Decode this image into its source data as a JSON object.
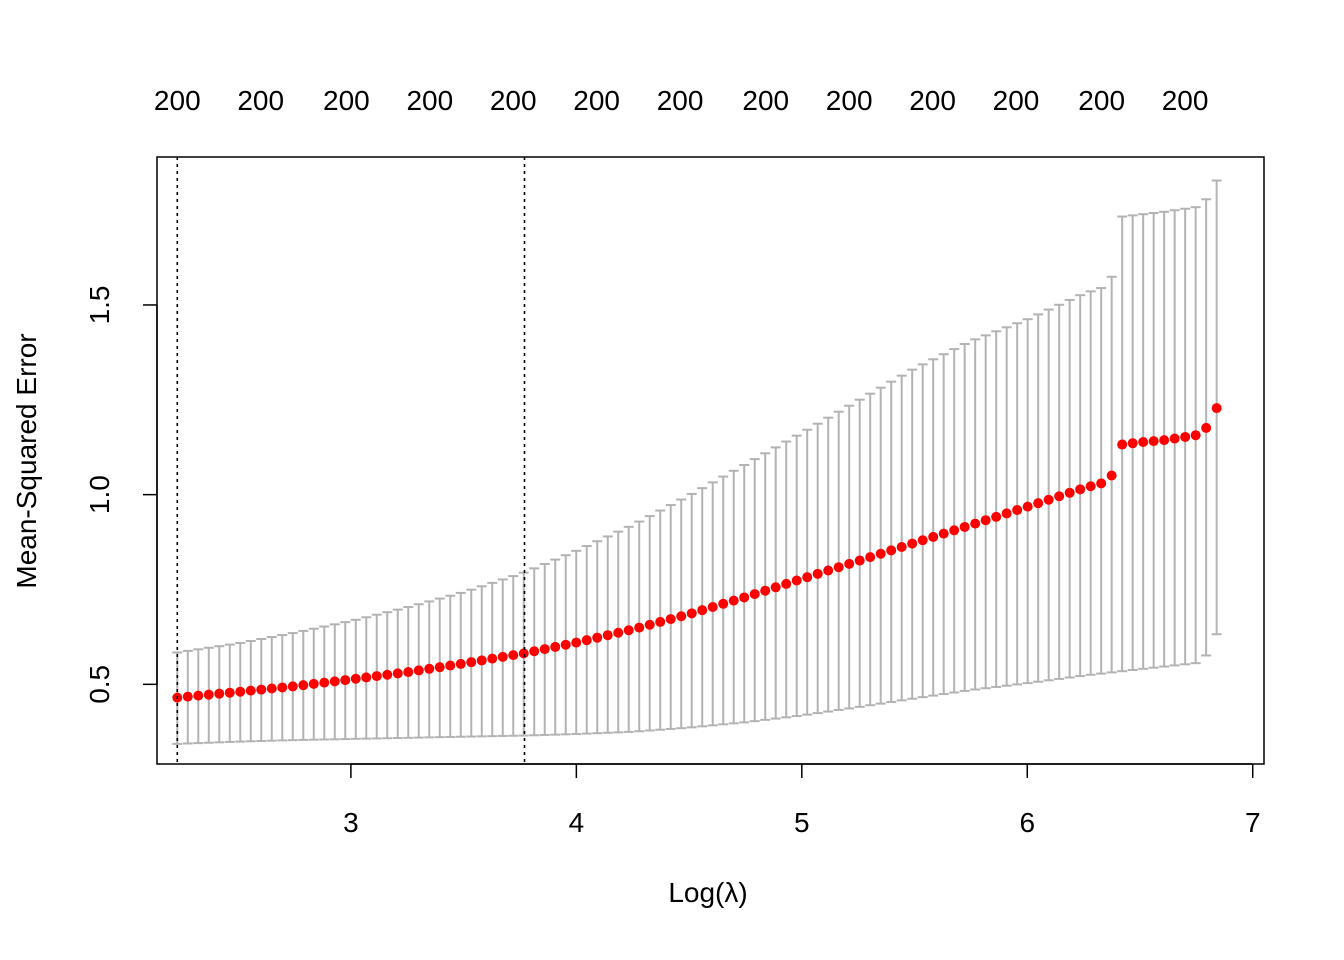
{
  "chart_data": {
    "type": "scatter",
    "xlabel": "Log(λ)",
    "ylabel": "Mean-Squared Error",
    "xlim": [
      2.14,
      7.05
    ],
    "ylim": [
      0.29,
      1.89
    ],
    "x_ticks": [
      3,
      4,
      5,
      6,
      7
    ],
    "y_ticks": [
      0.5,
      1.0,
      1.5
    ],
    "x_tick_labels": [
      "3",
      "4",
      "5",
      "6",
      "7"
    ],
    "y_tick_labels": [
      "0.5",
      "1.0",
      "1.5"
    ],
    "top_axis_labels": [
      {
        "x": 2.23,
        "label": "200"
      },
      {
        "x": 2.6,
        "label": "200"
      },
      {
        "x": 2.98,
        "label": "200"
      },
      {
        "x": 3.35,
        "label": "200"
      },
      {
        "x": 3.72,
        "label": "200"
      },
      {
        "x": 4.09,
        "label": "200"
      },
      {
        "x": 4.46,
        "label": "200"
      },
      {
        "x": 4.84,
        "label": "200"
      },
      {
        "x": 5.21,
        "label": "200"
      },
      {
        "x": 5.58,
        "label": "200"
      },
      {
        "x": 5.95,
        "label": "200"
      },
      {
        "x": 6.33,
        "label": "200"
      },
      {
        "x": 6.7,
        "label": "200"
      }
    ],
    "vlines": [
      2.23,
      3.77
    ],
    "grid": false,
    "series": [
      {
        "x_start": 2.23,
        "x_end": 6.84,
        "n_points": 100,
        "mean_anchors": [
          [
            2.23,
            0.465
          ],
          [
            2.5,
            0.48
          ],
          [
            2.75,
            0.495
          ],
          [
            3.0,
            0.513
          ],
          [
            3.25,
            0.532
          ],
          [
            3.5,
            0.555
          ],
          [
            3.77,
            0.582
          ],
          [
            4.0,
            0.61
          ],
          [
            4.25,
            0.645
          ],
          [
            4.5,
            0.685
          ],
          [
            4.75,
            0.73
          ],
          [
            5.0,
            0.778
          ],
          [
            5.25,
            0.825
          ],
          [
            5.5,
            0.873
          ],
          [
            5.75,
            0.92
          ],
          [
            6.0,
            0.968
          ],
          [
            6.25,
            1.017
          ],
          [
            6.33,
            1.03
          ],
          [
            6.38,
            1.053
          ],
          [
            6.42,
            1.132
          ],
          [
            6.5,
            1.138
          ],
          [
            6.6,
            1.143
          ],
          [
            6.7,
            1.152
          ],
          [
            6.75,
            1.157
          ],
          [
            6.79,
            1.172
          ],
          [
            6.84,
            1.228
          ]
        ],
        "upper_anchors": [
          [
            2.23,
            0.584
          ],
          [
            2.5,
            0.608
          ],
          [
            2.75,
            0.636
          ],
          [
            3.0,
            0.667
          ],
          [
            3.25,
            0.703
          ],
          [
            3.5,
            0.743
          ],
          [
            3.77,
            0.795
          ],
          [
            4.0,
            0.852
          ],
          [
            4.25,
            0.92
          ],
          [
            4.5,
            0.998
          ],
          [
            4.75,
            1.08
          ],
          [
            5.0,
            1.163
          ],
          [
            5.25,
            1.248
          ],
          [
            5.5,
            1.333
          ],
          [
            5.75,
            1.405
          ],
          [
            6.0,
            1.462
          ],
          [
            6.25,
            1.53
          ],
          [
            6.33,
            1.545
          ],
          [
            6.38,
            1.578
          ],
          [
            6.42,
            1.733
          ],
          [
            6.6,
            1.745
          ],
          [
            6.75,
            1.758
          ],
          [
            6.79,
            1.775
          ],
          [
            6.84,
            1.828
          ]
        ],
        "lower_anchors": [
          [
            2.23,
            0.343
          ],
          [
            2.5,
            0.349
          ],
          [
            2.75,
            0.353
          ],
          [
            3.0,
            0.356
          ],
          [
            3.25,
            0.359
          ],
          [
            3.5,
            0.362
          ],
          [
            3.77,
            0.365
          ],
          [
            4.0,
            0.369
          ],
          [
            4.25,
            0.375
          ],
          [
            4.5,
            0.386
          ],
          [
            4.75,
            0.4
          ],
          [
            5.0,
            0.418
          ],
          [
            5.25,
            0.44
          ],
          [
            5.5,
            0.463
          ],
          [
            5.75,
            0.485
          ],
          [
            6.0,
            0.503
          ],
          [
            6.25,
            0.523
          ],
          [
            6.5,
            0.54
          ],
          [
            6.75,
            0.556
          ],
          [
            6.79,
            0.572
          ],
          [
            6.84,
            0.632
          ]
        ]
      }
    ],
    "colors": {
      "points": "#ff0000",
      "error_bars": "#b3b3b3",
      "vlines": "#000000",
      "axes": "#000000"
    }
  }
}
